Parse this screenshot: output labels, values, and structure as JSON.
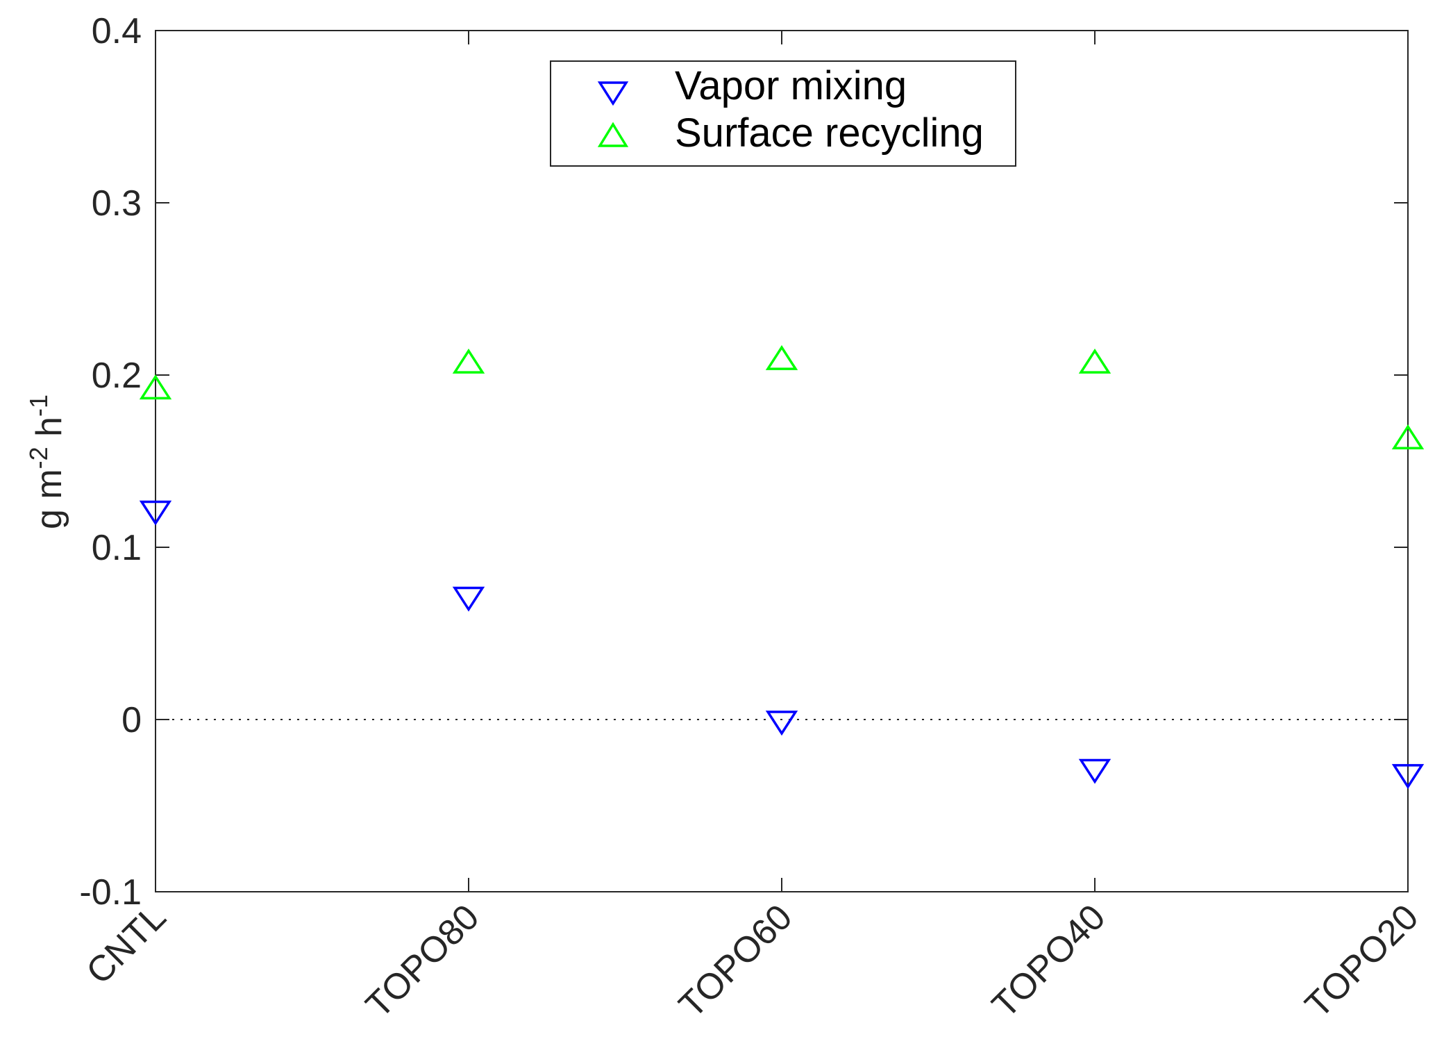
{
  "chart_data": {
    "type": "scatter",
    "categories": [
      "CNTL",
      "TOPO80",
      "TOPO60",
      "TOPO40",
      "TOPO20"
    ],
    "series": [
      {
        "name": "Vapor mixing",
        "marker": "triangle-down",
        "color": "#0000ff",
        "values": [
          0.122,
          0.072,
          0.0,
          -0.028,
          -0.031
        ]
      },
      {
        "name": "Surface recycling",
        "marker": "triangle-up",
        "color": "#00ff00",
        "values": [
          0.191,
          0.206,
          0.208,
          0.206,
          0.162
        ]
      }
    ],
    "ylabel": {
      "base": "g m",
      "exp1": "-2",
      "mid": " h",
      "exp2": "-1"
    },
    "ylim": [
      -0.1,
      0.4
    ],
    "yticks": [
      "-0.1",
      "0",
      "0.1",
      "0.2",
      "0.3",
      "0.4"
    ],
    "ytick_values": [
      -0.1,
      0,
      0.1,
      0.2,
      0.3,
      0.4
    ],
    "zero_line": "dotted",
    "grid": false,
    "legend_position": "top-center"
  }
}
